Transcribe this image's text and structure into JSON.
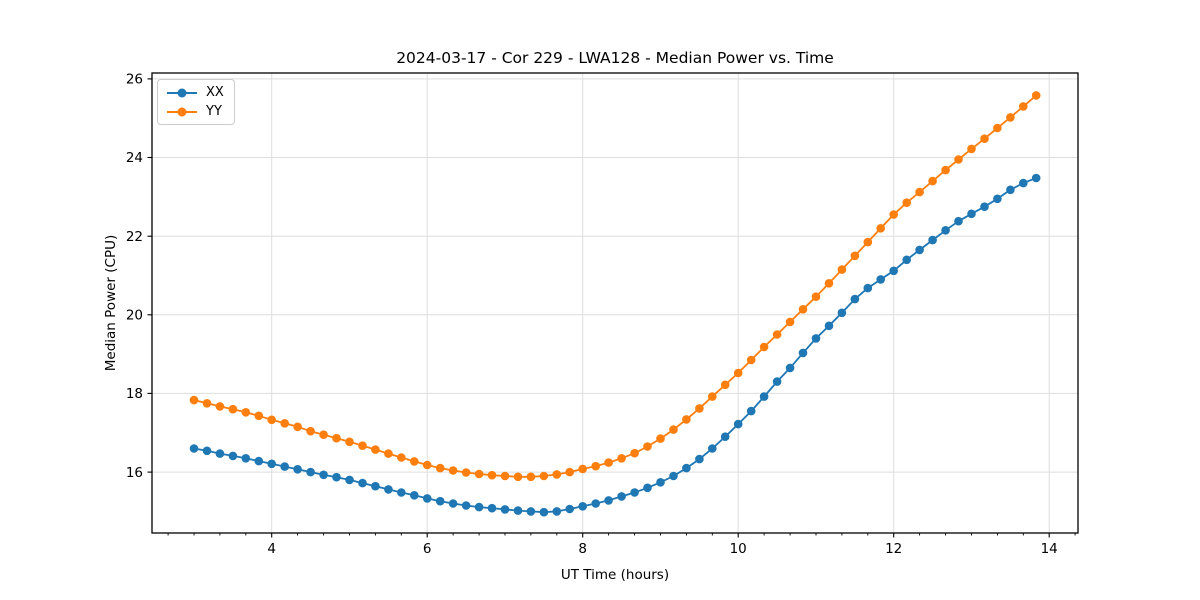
{
  "page": {
    "background": "#ffffff"
  },
  "chart_data": {
    "type": "line",
    "title": "2024-03-17 - Cor 229 - LWA128 - Median Power vs. Time",
    "xlabel": "UT Time (hours)",
    "ylabel": "Median Power (CPU)",
    "xlim": [
      2.46,
      14.37
    ],
    "ylim": [
      14.45,
      26.15
    ],
    "x_major_ticks": [
      4,
      6,
      8,
      10,
      12,
      14
    ],
    "x_minor_step": 0.33333,
    "y_major_ticks": [
      16,
      18,
      20,
      22,
      24,
      26
    ],
    "grid": true,
    "grid_color": "#dedede",
    "spine_color": "#000000",
    "legend_position": "upper left",
    "marker": "circle",
    "x": [
      3.0,
      3.167,
      3.333,
      3.5,
      3.667,
      3.833,
      4.0,
      4.167,
      4.333,
      4.5,
      4.667,
      4.833,
      5.0,
      5.167,
      5.333,
      5.5,
      5.667,
      5.833,
      6.0,
      6.167,
      6.333,
      6.5,
      6.667,
      6.833,
      7.0,
      7.167,
      7.333,
      7.5,
      7.667,
      7.833,
      8.0,
      8.167,
      8.333,
      8.5,
      8.667,
      8.833,
      9.0,
      9.167,
      9.333,
      9.5,
      9.667,
      9.833,
      10.0,
      10.167,
      10.333,
      10.5,
      10.667,
      10.833,
      11.0,
      11.167,
      11.333,
      11.5,
      11.667,
      11.833,
      12.0,
      12.167,
      12.333,
      12.5,
      12.667,
      12.833,
      13.0,
      13.167,
      13.333,
      13.5,
      13.667,
      13.833
    ],
    "series": [
      {
        "name": "XX",
        "color": "#1f77b4",
        "values": [
          16.6,
          16.54,
          16.47,
          16.41,
          16.35,
          16.28,
          16.21,
          16.14,
          16.07,
          16.0,
          15.93,
          15.87,
          15.8,
          15.72,
          15.64,
          15.56,
          15.48,
          15.41,
          15.33,
          15.26,
          15.2,
          15.15,
          15.11,
          15.08,
          15.05,
          15.02,
          15.0,
          14.98,
          15.0,
          15.06,
          15.13,
          15.2,
          15.28,
          15.38,
          15.48,
          15.6,
          15.74,
          15.9,
          16.1,
          16.33,
          16.6,
          16.9,
          17.22,
          17.55,
          17.92,
          18.3,
          18.65,
          19.03,
          19.4,
          19.72,
          20.05,
          20.4,
          20.68,
          20.9,
          21.12,
          21.4,
          21.65,
          21.9,
          22.15,
          22.38,
          22.57,
          22.75,
          22.95,
          23.18,
          23.35,
          23.48
        ]
      },
      {
        "name": "YY",
        "color": "#ff7f0e",
        "values": [
          17.83,
          17.75,
          17.67,
          17.6,
          17.52,
          17.43,
          17.33,
          17.24,
          17.15,
          17.04,
          16.95,
          16.86,
          16.77,
          16.67,
          16.57,
          16.47,
          16.37,
          16.27,
          16.18,
          16.1,
          16.04,
          15.99,
          15.95,
          15.92,
          15.9,
          15.88,
          15.88,
          15.9,
          15.94,
          16.0,
          16.08,
          16.15,
          16.24,
          16.35,
          16.48,
          16.65,
          16.85,
          17.08,
          17.34,
          17.62,
          17.92,
          18.22,
          18.52,
          18.85,
          19.18,
          19.5,
          19.82,
          20.14,
          20.46,
          20.8,
          21.15,
          21.5,
          21.85,
          22.2,
          22.55,
          22.85,
          23.12,
          23.4,
          23.68,
          23.95,
          24.22,
          24.48,
          24.75,
          25.02,
          25.3,
          25.58
        ]
      }
    ]
  }
}
